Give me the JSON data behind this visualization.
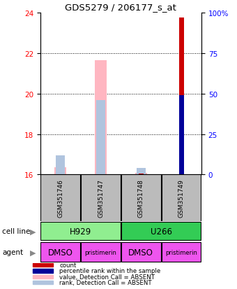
{
  "title": "GDS5279 / 206177_s_at",
  "samples": [
    "GSM351746",
    "GSM351747",
    "GSM351748",
    "GSM351749"
  ],
  "ylim_left": [
    16,
    24
  ],
  "ylim_right": [
    0,
    100
  ],
  "yticks_left": [
    16,
    18,
    20,
    22,
    24
  ],
  "yticks_right": [
    0,
    25,
    50,
    75,
    100
  ],
  "pink_bars_tops": [
    16.35,
    21.65,
    16.1,
    16.0
  ],
  "lightblue_pct": [
    12,
    46,
    4,
    0
  ],
  "red_bars_tops": [
    16.0,
    16.0,
    16.05,
    23.75
  ],
  "blue_pct": [
    0,
    0,
    0,
    49
  ],
  "cell_line_colors": {
    "H929": "#90EE90",
    "U266": "#33CC55"
  },
  "agent_color": "#EE55EE",
  "sample_box_color": "#BBBBBB",
  "col_pink": "#FFB6C1",
  "col_lightblue": "#B0C4DE",
  "col_red": "#CC0000",
  "col_blue": "#000099",
  "legend_items": [
    {
      "label": "count",
      "color": "#CC0000"
    },
    {
      "label": "percentile rank within the sample",
      "color": "#000099"
    },
    {
      "label": "value, Detection Call = ABSENT",
      "color": "#FFB6C1"
    },
    {
      "label": "rank, Detection Call = ABSENT",
      "color": "#B0C4DE"
    }
  ]
}
